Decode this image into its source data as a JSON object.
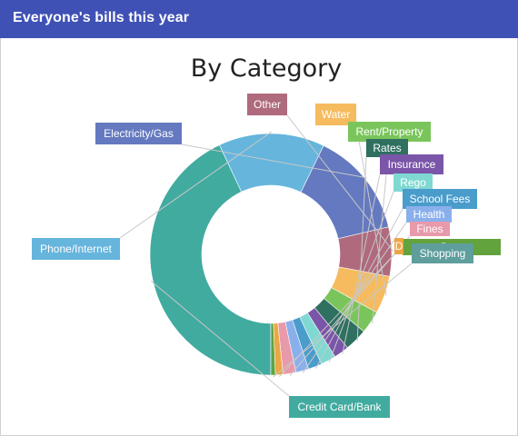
{
  "header": {
    "title": "Everyone's bills this year"
  },
  "chart_data": {
    "type": "pie",
    "donut": true,
    "title": "By Category",
    "categories": [
      "Credit Card/Bank",
      "Phone/Internet",
      "Electricity/Gas",
      "Other",
      "Water",
      "Rent/Property",
      "Rates",
      "Insurance",
      "Rego",
      "School Fees",
      "Health",
      "Fines",
      "Dental/Pharmacy",
      "Shopping"
    ],
    "display_labels": [
      "Credit Card/Bank",
      "Phone/Internet",
      "Electricity/Gas",
      "Other",
      "Water",
      "Rent/Property",
      "Rates",
      "Insurance",
      "Rego",
      "School Fees",
      "Health",
      "Fines",
      "D",
      "Shopping"
    ],
    "extra_labels": [
      "Dran..."
    ],
    "values": [
      42.5,
      14.0,
      14.0,
      6.5,
      5.0,
      3.0,
      3.0,
      2.0,
      2.0,
      1.8,
      1.7,
      1.7,
      1.0,
      0.6
    ],
    "colors": [
      "#41aba0",
      "#66b5dd",
      "#6479bf",
      "#af6a7d",
      "#f5bb5e",
      "#7ac55b",
      "#2f7060",
      "#7a55a8",
      "#7fd9d2",
      "#4a9ccb",
      "#8ab0ec",
      "#e899aa",
      "#eba645",
      "#62a33e"
    ],
    "extra_colors": [
      "#62a33e"
    ],
    "label_colors": [
      "#41aba0",
      "#66b5dd",
      "#6479bf",
      "#af6a7d",
      "#f5bb5e",
      "#7ac55b",
      "#2f7060",
      "#7a55a8",
      "#7fd9d2",
      "#4a9ccb",
      "#8ab0ec",
      "#e899aa",
      "#eba645",
      "#5e9e9d"
    ]
  }
}
